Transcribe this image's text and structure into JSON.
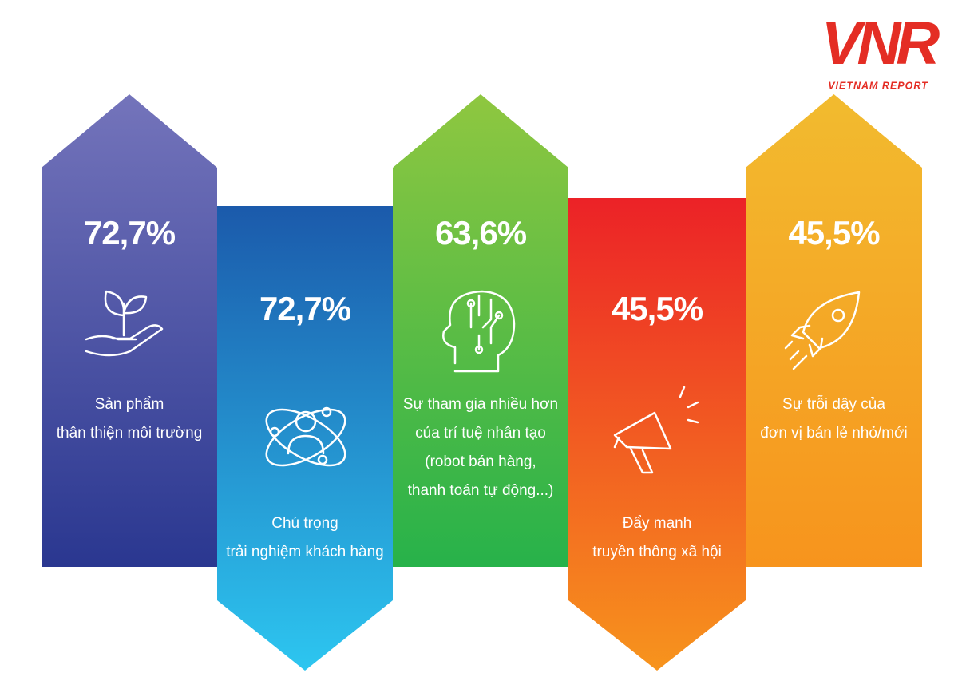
{
  "logo": {
    "mark": "VNR",
    "name": "VIETNAM REPORT"
  },
  "cards": [
    {
      "value": "72,7%",
      "label": [
        "Sản phẩm",
        "thân thiện môi trường"
      ]
    },
    {
      "value": "72,7%",
      "label": [
        "Chú trọng",
        "trải nghiệm khách hàng"
      ]
    },
    {
      "value": "63,6%",
      "label": [
        "Sự tham gia nhiều hơn",
        "của trí tuệ nhân tạo",
        "(robot bán hàng,",
        "thanh toán tự động...)"
      ]
    },
    {
      "value": "45,5%",
      "label": [
        "Đẩy mạnh",
        "truyền thông xã hội"
      ]
    },
    {
      "value": "45,5%",
      "label": [
        "Sự trỗi dậy của",
        "đơn vị bán lẻ nhỏ/mới"
      ]
    }
  ]
}
